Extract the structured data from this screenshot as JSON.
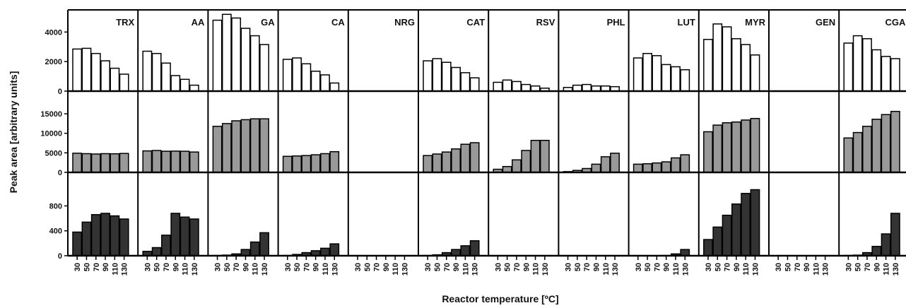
{
  "chart_data": {
    "type": "bar",
    "ylabel": "Peak  area  [arbitrary  units]",
    "xlabel": "Reactor temperature [ºC]",
    "temperatures": [
      "30",
      "50",
      "70",
      "90",
      "110",
      "130"
    ],
    "grid": false,
    "compounds": [
      "TRX",
      "AA",
      "GA",
      "CA",
      "NRG",
      "CAT",
      "RSV",
      "PHL",
      "LUT",
      "MYR",
      "GEN",
      "CGA"
    ],
    "rows": [
      {
        "fill": "#ffffff",
        "ylim": [
          0,
          5500
        ],
        "yticks": [
          0,
          2000,
          4000
        ],
        "values": [
          [
            2850,
            2900,
            2550,
            2050,
            1550,
            1150
          ],
          [
            2700,
            2550,
            1900,
            1050,
            800,
            400
          ],
          [
            4800,
            5200,
            4950,
            4250,
            3750,
            3150
          ],
          [
            2150,
            2250,
            1850,
            1350,
            1100,
            550
          ],
          [
            0,
            0,
            0,
            0,
            0,
            0
          ],
          [
            2050,
            2200,
            1950,
            1600,
            1250,
            900
          ],
          [
            600,
            750,
            650,
            450,
            350,
            200
          ],
          [
            250,
            400,
            450,
            350,
            350,
            300
          ],
          [
            2250,
            2550,
            2400,
            1800,
            1650,
            1450
          ],
          [
            3500,
            4550,
            4350,
            3550,
            3150,
            2450
          ],
          [
            0,
            0,
            0,
            0,
            0,
            0
          ],
          [
            3250,
            3750,
            3550,
            2800,
            2350,
            2200
          ]
        ]
      },
      {
        "fill": "#999999",
        "ylim": [
          0,
          17000
        ],
        "yticks": [
          0,
          5000,
          10000,
          15000
        ],
        "values": [
          [
            4900,
            4800,
            4700,
            4800,
            4750,
            4850
          ],
          [
            5500,
            5600,
            5400,
            5450,
            5400,
            5200
          ],
          [
            11800,
            12500,
            13200,
            13500,
            13700,
            13700
          ],
          [
            4100,
            4200,
            4300,
            4500,
            4800,
            5300
          ],
          [
            0,
            0,
            0,
            0,
            0,
            0
          ],
          [
            4300,
            4700,
            5200,
            6000,
            7200,
            7600
          ],
          [
            800,
            1500,
            3200,
            5600,
            8200,
            8200
          ],
          [
            200,
            500,
            1000,
            2100,
            4000,
            4900
          ],
          [
            2100,
            2200,
            2400,
            2700,
            3700,
            4500
          ],
          [
            10400,
            12100,
            12700,
            12900,
            13400,
            13800
          ],
          [
            0,
            0,
            0,
            0,
            0,
            0
          ],
          [
            8800,
            10200,
            11800,
            13600,
            14800,
            15600
          ]
        ]
      },
      {
        "fill": "#333333",
        "ylim": [
          0,
          1100
        ],
        "yticks": [
          0,
          400,
          800
        ],
        "values": [
          [
            380,
            540,
            660,
            680,
            640,
            590
          ],
          [
            70,
            130,
            330,
            680,
            620,
            590
          ],
          [
            5,
            10,
            30,
            100,
            220,
            370
          ],
          [
            5,
            20,
            50,
            80,
            120,
            190
          ],
          [
            0,
            0,
            0,
            0,
            0,
            0
          ],
          [
            5,
            15,
            50,
            100,
            160,
            240
          ],
          [
            0,
            0,
            0,
            0,
            0,
            0
          ],
          [
            0,
            0,
            0,
            0,
            0,
            0
          ],
          [
            0,
            0,
            0,
            5,
            30,
            100
          ],
          [
            260,
            460,
            650,
            830,
            1000,
            1060
          ],
          [
            0,
            0,
            0,
            0,
            0,
            0
          ],
          [
            5,
            10,
            50,
            150,
            350,
            680
          ]
        ]
      }
    ]
  }
}
